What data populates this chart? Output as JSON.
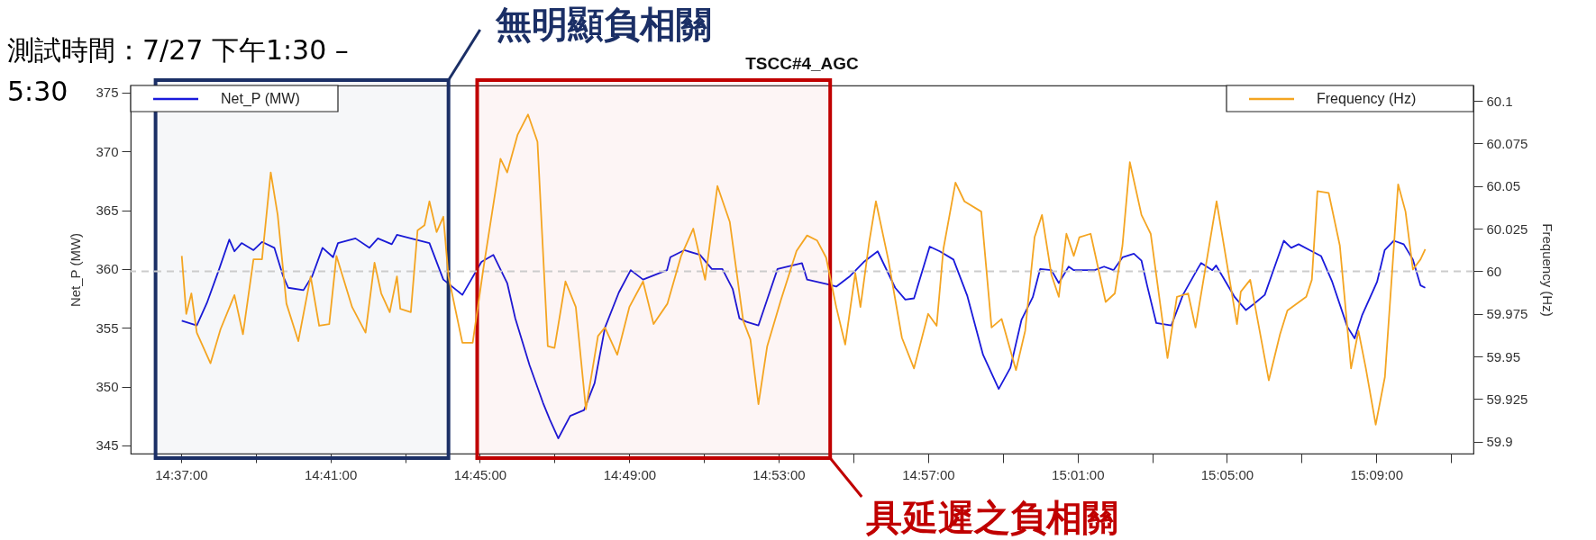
{
  "chart_data": {
    "type": "line",
    "title": "TSCC#4_AGC",
    "ylabel": "Net_P (MW)",
    "y2label": "Frequency (Hz)",
    "annotations": [
      "測試時間：7/27 下午1:30 – 5:30"
    ],
    "legend": "top",
    "marker": "none",
    "line_style": "solid",
    "grid": false,
    "xlim": [
      14.5942,
      15.1933
    ],
    "xticks": [
      {
        "value": 14.6167,
        "label": "14:37:00"
      },
      {
        "value": 14.65,
        "label": null
      },
      {
        "value": 14.6833,
        "label": "14:41:00"
      },
      {
        "value": 14.7167,
        "label": null
      },
      {
        "value": 14.75,
        "label": "14:45:00"
      },
      {
        "value": 14.7833,
        "label": null
      },
      {
        "value": 14.8167,
        "label": "14:49:00"
      },
      {
        "value": 14.85,
        "label": null
      },
      {
        "value": 14.8833,
        "label": "14:53:00"
      },
      {
        "value": 14.9167,
        "label": null
      },
      {
        "value": 14.95,
        "label": "14:57:00"
      },
      {
        "value": 14.9833,
        "label": null
      },
      {
        "value": 15.0167,
        "label": "15:01:00"
      },
      {
        "value": 15.05,
        "label": null
      },
      {
        "value": 15.0833,
        "label": "15:05:00"
      },
      {
        "value": 15.1167,
        "label": null
      },
      {
        "value": 15.15,
        "label": "15:09:00"
      },
      {
        "value": 15.1833,
        "label": null
      }
    ],
    "ylim": [
      344.3,
      375.6
    ],
    "yticks": [
      345,
      350,
      355,
      360,
      365,
      370,
      375
    ],
    "y2lim": [
      59.893,
      60.109
    ],
    "y2ticks": [
      59.9,
      59.925,
      59.95,
      59.975,
      60,
      60.025,
      60.05,
      60.075,
      60.1
    ],
    "ref_lines": [
      {
        "axis": "y2",
        "value": 60,
        "color": "#cccccc",
        "line_style": "dashed"
      }
    ],
    "bands": [
      {
        "axis": "x",
        "from": 14.6053,
        "to": 14.736,
        "label": "無明顯負相關",
        "color": "#1b2f66"
      },
      {
        "axis": "x",
        "from": 14.7488,
        "to": 14.9063,
        "label": "具延遲之負相關",
        "color": "#c00000"
      }
    ],
    "series": [
      {
        "name": "Net_P (MW)",
        "color": "#1a1adb",
        "axis": "y",
        "x": [
          14.617,
          14.6237,
          14.6282,
          14.6337,
          14.6382,
          14.6405,
          14.6437,
          14.649,
          14.6528,
          14.6583,
          14.6622,
          14.6645,
          14.6713,
          14.6752,
          14.6798,
          14.6845,
          14.6867,
          14.6945,
          14.7007,
          14.7045,
          14.7107,
          14.713,
          14.7192,
          14.7275,
          14.7337,
          14.7422,
          14.7507,
          14.756,
          14.7622,
          14.7658,
          14.7722,
          14.7782,
          14.7812,
          14.785,
          14.7903,
          14.7965,
          14.8012,
          14.8058,
          14.812,
          14.8173,
          14.8228,
          14.8335,
          14.835,
          14.8412,
          14.8482,
          14.8535,
          14.8582,
          14.8628,
          14.8658,
          14.869,
          14.8743,
          14.8782,
          14.8828,
          14.8937,
          14.896,
          14.9052,
          14.909,
          14.9152,
          14.9213,
          14.9275,
          14.9353,
          14.9398,
          14.9437,
          14.9507,
          14.9552,
          14.9613,
          14.9675,
          14.9745,
          14.9815,
          14.9867,
          14.9917,
          14.9967,
          15.0,
          15.005,
          15.0083,
          15.0127,
          15.015,
          15.0243,
          15.0285,
          15.0327,
          15.0368,
          15.0418,
          15.0452,
          15.0477,
          15.0518,
          15.0585,
          15.0637,
          15.0702,
          15.0718,
          15.0768,
          15.0785,
          15.0868,
          15.0918,
          15.0952,
          15.1002,
          15.1037,
          15.1087,
          15.112,
          15.1153,
          15.1203,
          15.1253,
          15.1303,
          15.137,
          15.1403,
          15.1437,
          15.1503,
          15.1537,
          15.1578,
          15.1622,
          15.1663,
          15.1697,
          15.1718
        ],
        "values": [
          355.6,
          355.2,
          357.1,
          360.0,
          362.5,
          361.5,
          362.2,
          361.6,
          362.3,
          361.8,
          359.4,
          358.4,
          358.2,
          359.4,
          361.8,
          361.0,
          362.2,
          362.6,
          361.8,
          362.6,
          362.1,
          362.9,
          362.6,
          362.2,
          359.1,
          357.8,
          360.6,
          361.2,
          358.8,
          355.8,
          351.8,
          348.6,
          347.2,
          345.6,
          347.5,
          348.0,
          350.3,
          355.0,
          358.0,
          359.9,
          359.1,
          359.9,
          361.0,
          361.6,
          361.2,
          360.0,
          360.0,
          358.3,
          355.8,
          355.5,
          355.2,
          357.4,
          360.0,
          360.5,
          359.1,
          358.7,
          358.5,
          359.4,
          360.6,
          361.5,
          358.4,
          357.4,
          357.5,
          361.9,
          361.5,
          360.8,
          357.7,
          352.7,
          349.8,
          351.6,
          355.7,
          357.6,
          360.0,
          359.9,
          358.8,
          360.2,
          359.9,
          359.9,
          360.2,
          359.9,
          361.0,
          361.3,
          360.7,
          358.6,
          355.4,
          355.2,
          357.8,
          360.0,
          360.5,
          359.9,
          360.3,
          357.6,
          356.5,
          357.0,
          357.8,
          359.7,
          362.4,
          361.8,
          362.1,
          361.6,
          361.1,
          358.9,
          355.1,
          354.1,
          356.1,
          358.9,
          361.6,
          362.4,
          362.1,
          360.8,
          358.6,
          358.4
        ]
      },
      {
        "name": "Frequency (Hz)",
        "color": "#f4a522",
        "axis": "y2",
        "x": [
          14.617,
          14.619,
          14.6213,
          14.6237,
          14.6298,
          14.6343,
          14.6405,
          14.6443,
          14.649,
          14.6528,
          14.6567,
          14.6598,
          14.6637,
          14.669,
          14.6745,
          14.6783,
          14.6828,
          14.686,
          14.693,
          14.699,
          14.703,
          14.706,
          14.7098,
          14.713,
          14.7145,
          14.7192,
          14.7222,
          14.7253,
          14.7275,
          14.7307,
          14.7337,
          14.736,
          14.7422,
          14.7468,
          14.7515,
          14.7592,
          14.7622,
          14.7668,
          14.7715,
          14.7757,
          14.7803,
          14.7833,
          14.7882,
          14.7928,
          14.7973,
          14.8027,
          14.8058,
          14.8113,
          14.8167,
          14.8228,
          14.8275,
          14.8337,
          14.8398,
          14.8452,
          14.8505,
          14.856,
          14.8615,
          14.8675,
          14.8707,
          14.8743,
          14.8782,
          14.8843,
          14.8913,
          14.896,
          14.9005,
          14.9045,
          14.909,
          14.913,
          14.9175,
          14.9198,
          14.9237,
          14.9267,
          14.9322,
          14.9383,
          14.9437,
          14.95,
          14.9538,
          14.9568,
          14.9622,
          14.9662,
          14.9737,
          14.9783,
          14.9828,
          14.9892,
          14.9933,
          14.9975,
          15.0008,
          15.005,
          15.0083,
          15.0117,
          15.015,
          15.0175,
          15.0225,
          15.0292,
          15.0333,
          15.0367,
          15.04,
          15.0452,
          15.0493,
          15.0568,
          15.061,
          15.066,
          15.0693,
          15.0787,
          15.0878,
          15.0895,
          15.0937,
          15.102,
          15.107,
          15.1103,
          15.1187,
          15.1212,
          15.1237,
          15.1287,
          15.1337,
          15.1387,
          15.142,
          15.1453,
          15.1497,
          15.1538,
          15.1597,
          15.163,
          15.1663,
          15.1697,
          15.1718
        ],
        "values": [
          60.009,
          59.975,
          59.987,
          59.964,
          59.946,
          59.966,
          59.986,
          59.963,
          60.007,
          60.007,
          60.058,
          60.033,
          59.981,
          59.959,
          59.997,
          59.968,
          59.969,
          60.009,
          59.979,
          59.964,
          60.005,
          59.987,
          59.976,
          59.997,
          59.978,
          59.976,
          60.024,
          60.027,
          60.041,
          60.023,
          60.032,
          59.997,
          59.958,
          59.958,
          60.001,
          60.066,
          60.058,
          60.08,
          60.092,
          60.076,
          59.956,
          59.955,
          59.994,
          59.979,
          59.919,
          59.962,
          59.967,
          59.951,
          59.979,
          59.994,
          59.969,
          59.981,
          60.009,
          60.025,
          59.995,
          60.05,
          60.029,
          59.971,
          59.96,
          59.922,
          59.956,
          59.983,
          60.012,
          60.021,
          60.018,
          60.008,
          59.979,
          59.957,
          59.999,
          59.979,
          60.017,
          60.041,
          60.007,
          59.961,
          59.943,
          59.975,
          59.968,
          60.013,
          60.052,
          60.041,
          60.035,
          59.967,
          59.972,
          59.942,
          59.965,
          60.02,
          60.033,
          59.998,
          59.985,
          60.022,
          60.009,
          60.02,
          60.022,
          59.982,
          59.987,
          60.015,
          60.064,
          60.033,
          60.022,
          59.949,
          59.985,
          59.987,
          59.967,
          60.041,
          59.969,
          59.988,
          59.995,
          59.936,
          59.963,
          59.977,
          59.985,
          59.995,
          60.047,
          60.046,
          60.015,
          59.943,
          59.965,
          59.943,
          59.91,
          59.938,
          60.051,
          60.035,
          60.001,
          60.007,
          60.013
        ]
      }
    ]
  }
}
